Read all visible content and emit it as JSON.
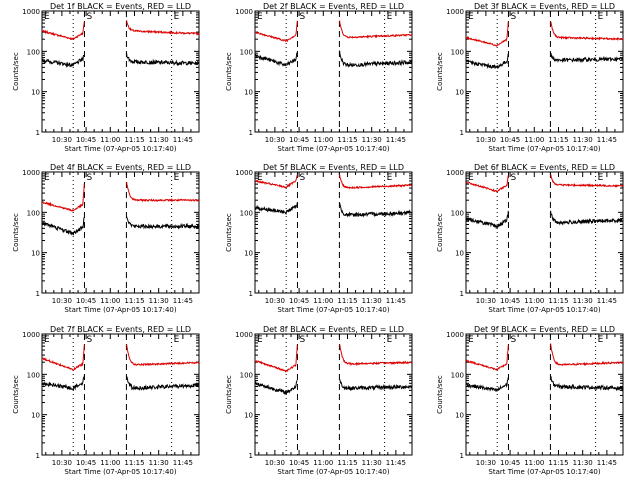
{
  "chart_data": {
    "type": "line",
    "yscale": "log",
    "ylim": [
      1,
      1000
    ],
    "ylabel": "Counts/sec",
    "xlabel": "Start Time (07-Apr-05 10:17:40)",
    "xlim": [
      "10:17:40",
      "11:55:00"
    ],
    "x_ticks": [
      "10:30",
      "10:45",
      "11:00",
      "11:15",
      "11:30",
      "11:45"
    ],
    "y_ticks": [
      "1",
      "10",
      "100",
      "1000"
    ],
    "series_colors": {
      "events": "#000000",
      "lld": "#dd0000"
    },
    "dotted_markers": [
      "10:37",
      "11:38"
    ],
    "dashed_markers": [
      "10:44",
      "11:10"
    ],
    "marker_labels": [
      "E",
      "S",
      "E"
    ],
    "panels": [
      {
        "title": "Det 1f BLACK = Events, RED = LLD",
        "events": [
          60,
          45,
          90,
          55,
          50
        ],
        "lld": [
          320,
          200,
          600,
          320,
          270
        ]
      },
      {
        "title": "Det 2f BLACK = Events, RED = LLD",
        "events": [
          80,
          45,
          100,
          45,
          55
        ],
        "lld": [
          300,
          180,
          600,
          220,
          260
        ]
      },
      {
        "title": "Det 3f BLACK = Events, RED = LLD",
        "events": [
          55,
          40,
          90,
          60,
          65
        ],
        "lld": [
          220,
          140,
          600,
          220,
          200
        ]
      },
      {
        "title": "Det 4f BLACK = Events, RED = LLD",
        "events": [
          55,
          30,
          90,
          45,
          45
        ],
        "lld": [
          180,
          110,
          600,
          200,
          200
        ]
      },
      {
        "title": "Det 5f BLACK = Events, RED = LLD",
        "events": [
          130,
          100,
          170,
          85,
          100
        ],
        "lld": [
          600,
          420,
          900,
          400,
          480
        ]
      },
      {
        "title": "Det 6f BLACK = Events, RED = LLD",
        "events": [
          70,
          45,
          110,
          55,
          65
        ],
        "lld": [
          560,
          330,
          900,
          480,
          450
        ]
      },
      {
        "title": "Det 7f BLACK = Events, RED = LLD",
        "events": [
          60,
          45,
          100,
          45,
          55
        ],
        "lld": [
          250,
          130,
          600,
          170,
          200
        ]
      },
      {
        "title": "Det 8f BLACK = Events, RED = LLD",
        "events": [
          60,
          35,
          80,
          45,
          50
        ],
        "lld": [
          220,
          120,
          600,
          180,
          200
        ]
      },
      {
        "title": "Det 9f BLACK = Events, RED = LLD",
        "events": [
          55,
          40,
          90,
          50,
          45
        ],
        "lld": [
          220,
          130,
          600,
          170,
          200
        ]
      }
    ]
  }
}
